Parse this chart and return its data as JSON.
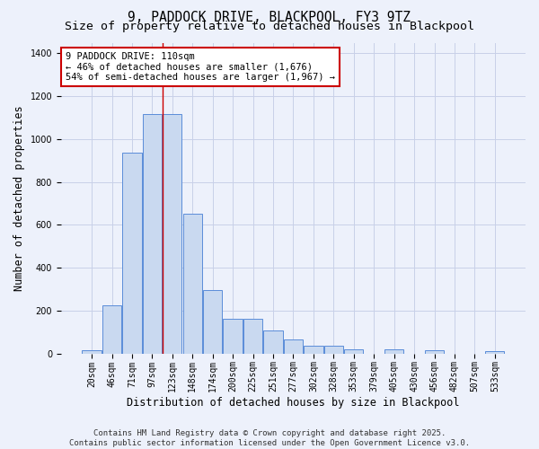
{
  "title_line1": "9, PADDOCK DRIVE, BLACKPOOL, FY3 9TZ",
  "title_line2": "Size of property relative to detached houses in Blackpool",
  "xlabel": "Distribution of detached houses by size in Blackpool",
  "ylabel": "Number of detached properties",
  "categories": [
    "20sqm",
    "46sqm",
    "71sqm",
    "97sqm",
    "123sqm",
    "148sqm",
    "174sqm",
    "200sqm",
    "225sqm",
    "251sqm",
    "277sqm",
    "302sqm",
    "328sqm",
    "353sqm",
    "379sqm",
    "405sqm",
    "430sqm",
    "456sqm",
    "482sqm",
    "507sqm",
    "533sqm"
  ],
  "values": [
    15,
    225,
    935,
    1115,
    1115,
    650,
    295,
    160,
    160,
    105,
    65,
    35,
    35,
    20,
    0,
    20,
    0,
    15,
    0,
    0,
    10
  ],
  "bar_color": "#c9d9f0",
  "bar_edge_color": "#5b8dd9",
  "grid_color": "#c8d0e8",
  "background_color": "#edf1fb",
  "annotation_box_color": "#ffffff",
  "annotation_box_edge": "#cc0000",
  "vline_color": "#cc0000",
  "vline_x": 3.5,
  "annotation_text_line1": "9 PADDOCK DRIVE: 110sqm",
  "annotation_text_line2": "← 46% of detached houses are smaller (1,676)",
  "annotation_text_line3": "54% of semi-detached houses are larger (1,967) →",
  "footer_line1": "Contains HM Land Registry data © Crown copyright and database right 2025.",
  "footer_line2": "Contains public sector information licensed under the Open Government Licence v3.0.",
  "ylim": [
    0,
    1450
  ],
  "title_fontsize": 10.5,
  "subtitle_fontsize": 9.5,
  "axis_label_fontsize": 8.5,
  "tick_fontsize": 7,
  "annotation_fontsize": 7.5,
  "footer_fontsize": 6.5
}
